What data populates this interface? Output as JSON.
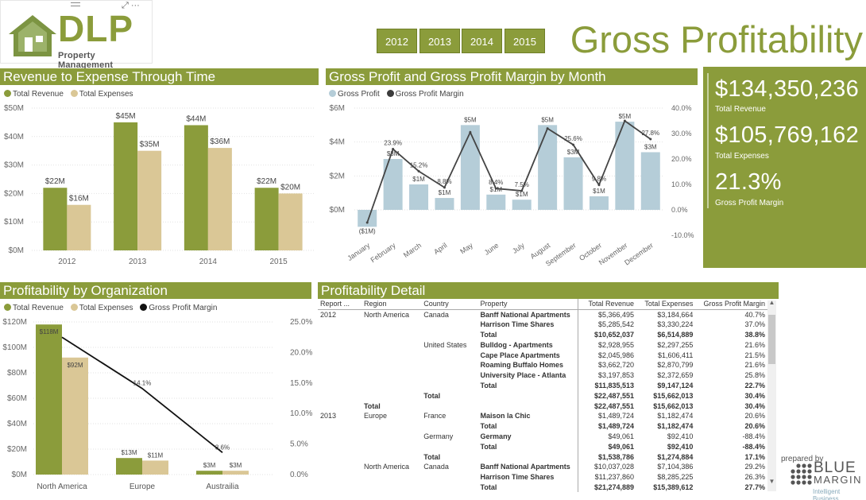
{
  "logo": {
    "brand": "DLP",
    "subtitle": "Property Management"
  },
  "years": [
    "2012",
    "2013",
    "2014",
    "2015"
  ],
  "page_title": "Gross Profitability",
  "colors": {
    "accent": "#8b9c3b",
    "expenses": "#dac796",
    "gross_profit": "#b5cdd8",
    "margin_line": "#3b3b3b"
  },
  "revenue_chart": {
    "title": "Revenue to Expense Through Time",
    "legend": [
      "Total Revenue",
      "Total Expenses"
    ]
  },
  "gp_chart": {
    "title": "Gross Profit and Gross Profit Margin by Month",
    "legend": [
      "Gross Profit",
      "Gross Profit Margin"
    ]
  },
  "org_chart": {
    "title": "Profitability by Organization",
    "legend": [
      "Total Revenue",
      "Total Expenses",
      "Gross Profit Margin"
    ]
  },
  "kpis": {
    "revenue_value": "$134,350,236",
    "revenue_label": "Total Revenue",
    "expenses_value": "$105,769,162",
    "expenses_label": "Total Expenses",
    "margin_value": "21.3%",
    "margin_label": "Gross Profit Margin"
  },
  "detail": {
    "title": "Profitability Detail",
    "columns": [
      "Report ...",
      "Region",
      "Country",
      "Property",
      "Total Revenue",
      "Total Expenses",
      "Gross Profit Margin"
    ],
    "rows": [
      {
        "c": [
          "2012",
          "North America",
          "Canada",
          "Banff National Apartments",
          "$5,366,495",
          "$3,184,664",
          "40.7%"
        ],
        "b": false
      },
      {
        "c": [
          "",
          "",
          "",
          "Harrison Time Shares",
          "$5,285,542",
          "$3,330,224",
          "37.0%"
        ],
        "b": false
      },
      {
        "c": [
          "",
          "",
          "",
          "Total",
          "$10,652,037",
          "$6,514,889",
          "38.8%"
        ],
        "b": true
      },
      {
        "c": [
          "",
          "",
          "United States",
          "Bulldog - Apartments",
          "$2,928,955",
          "$2,297,255",
          "21.6%"
        ],
        "b": false
      },
      {
        "c": [
          "",
          "",
          "",
          "Cape Place Apartments",
          "$2,045,986",
          "$1,606,411",
          "21.5%"
        ],
        "b": false
      },
      {
        "c": [
          "",
          "",
          "",
          "Roaming Buffalo Homes",
          "$3,662,720",
          "$2,870,799",
          "21.6%"
        ],
        "b": false
      },
      {
        "c": [
          "",
          "",
          "",
          "University Place - Atlanta",
          "$3,197,853",
          "$2,372,659",
          "25.8%"
        ],
        "b": false
      },
      {
        "c": [
          "",
          "",
          "",
          "Total",
          "$11,835,513",
          "$9,147,124",
          "22.7%"
        ],
        "b": true
      },
      {
        "c": [
          "",
          "",
          "Total",
          "",
          "$22,487,551",
          "$15,662,013",
          "30.4%"
        ],
        "b": true
      },
      {
        "c": [
          "",
          "Total",
          "",
          "",
          "$22,487,551",
          "$15,662,013",
          "30.4%"
        ],
        "b": true
      },
      {
        "c": [
          "2013",
          "Europe",
          "France",
          "Maison la Chic",
          "$1,489,724",
          "$1,182,474",
          "20.6%"
        ],
        "b": false
      },
      {
        "c": [
          "",
          "",
          "",
          "Total",
          "$1,489,724",
          "$1,182,474",
          "20.6%"
        ],
        "b": true
      },
      {
        "c": [
          "",
          "",
          "Germany",
          "Germany",
          "$49,061",
          "$92,410",
          "-88.4%"
        ],
        "b": false
      },
      {
        "c": [
          "",
          "",
          "",
          "Total",
          "$49,061",
          "$92,410",
          "-88.4%"
        ],
        "b": true
      },
      {
        "c": [
          "",
          "",
          "Total",
          "",
          "$1,538,786",
          "$1,274,884",
          "17.1%"
        ],
        "b": true
      },
      {
        "c": [
          "",
          "North America",
          "Canada",
          "Banff National Apartments",
          "$10,037,028",
          "$7,104,386",
          "29.2%"
        ],
        "b": false
      },
      {
        "c": [
          "",
          "",
          "",
          "Harrison Time Shares",
          "$11,237,860",
          "$8,285,225",
          "26.3%"
        ],
        "b": false
      },
      {
        "c": [
          "",
          "",
          "",
          "Total",
          "$21,274,889",
          "$15,389,612",
          "27.7%"
        ],
        "b": true
      }
    ]
  },
  "footer": {
    "prepared": "prepared by",
    "brand_top": "BLUE",
    "brand_bottom": "MARGIN",
    "tagline": "Intelligent Business"
  },
  "chart_data": [
    {
      "type": "bar",
      "title": "Revenue to Expense Through Time",
      "categories": [
        "2012",
        "2013",
        "2014",
        "2015"
      ],
      "series": [
        {
          "name": "Total Revenue",
          "values": [
            22,
            45,
            44,
            22
          ],
          "labels": [
            "$22M",
            "$45M",
            "$44M",
            "$22M"
          ]
        },
        {
          "name": "Total Expenses",
          "values": [
            16,
            35,
            36,
            20
          ],
          "labels": [
            "$16M",
            "$35M",
            "$36M",
            "$20M"
          ]
        }
      ],
      "yticks": [
        "$0M",
        "$10M",
        "$20M",
        "$30M",
        "$40M",
        "$50M"
      ],
      "ylim": [
        0,
        50
      ]
    },
    {
      "type": "bar+line",
      "title": "Gross Profit and Gross Profit Margin by Month",
      "categories": [
        "January",
        "February",
        "March",
        "April",
        "May",
        "June",
        "July",
        "August",
        "September",
        "October",
        "November",
        "December"
      ],
      "bars": {
        "name": "Gross Profit",
        "values": [
          -1,
          3,
          1.5,
          0.7,
          5,
          0.9,
          0.6,
          5,
          3.1,
          0.8,
          5.2,
          3.4
        ],
        "labels": [
          "($1M)",
          "$3M",
          "$1M",
          "$1M",
          "$5M",
          "$1M",
          "$1M",
          "$5M",
          "$3M",
          "$1M",
          "$5M",
          "$3M"
        ]
      },
      "line": {
        "name": "Gross Profit Margin",
        "values": [
          -5,
          23.9,
          15.2,
          8.8,
          30.5,
          8.4,
          7.5,
          32,
          25.6,
          9.8,
          35,
          27.8
        ],
        "labels": [
          "",
          "23.9%",
          "15.2%",
          "8.8%",
          "",
          "8.4%",
          "7.5%",
          "",
          "25.6%",
          "9.8%",
          "",
          "27.8%"
        ]
      },
      "yticks_left": [
        "$0M",
        "$2M",
        "$4M",
        "$6M"
      ],
      "ylim_left": [
        -1.5,
        6
      ],
      "yticks_right": [
        "-10.0%",
        "0.0%",
        "10.0%",
        "20.0%",
        "30.0%",
        "40.0%"
      ],
      "ylim_right": [
        -10,
        40
      ]
    },
    {
      "type": "bar+line",
      "title": "Profitability by Organization",
      "categories": [
        "North America",
        "Europe",
        "Austrailia"
      ],
      "series": [
        {
          "name": "Total Revenue",
          "values": [
            118,
            13,
            3
          ],
          "labels": [
            "$118M",
            "$13M",
            "$3M"
          ]
        },
        {
          "name": "Total Expenses",
          "values": [
            92,
            11,
            3
          ],
          "labels": [
            "$92M",
            "$11M",
            "$3M"
          ]
        }
      ],
      "line": {
        "name": "Gross Profit Margin",
        "values": [
          22.5,
          14.1,
          3.6
        ],
        "labels": [
          "",
          "14.1%",
          "3.6%"
        ]
      },
      "yticks_left": [
        "$0M",
        "$20M",
        "$40M",
        "$60M",
        "$80M",
        "$100M",
        "$120M"
      ],
      "ylim_left": [
        0,
        120
      ],
      "yticks_right": [
        "0.0%",
        "5.0%",
        "10.0%",
        "15.0%",
        "20.0%",
        "25.0%"
      ],
      "ylim_right": [
        0,
        25
      ]
    }
  ]
}
